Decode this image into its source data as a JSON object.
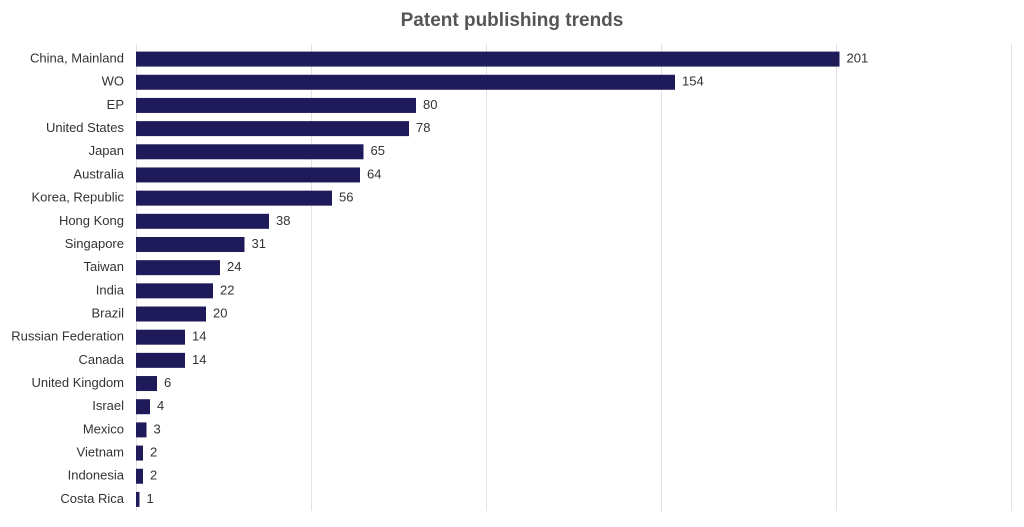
{
  "chart_data": {
    "type": "bar",
    "orientation": "horizontal",
    "title": "Patent publishing trends",
    "categories": [
      "China, Mainland",
      "WO",
      "EP",
      "United States",
      "Japan",
      "Australia",
      "Korea, Republic",
      "Hong Kong",
      "Singapore",
      "Taiwan",
      "India",
      "Brazil",
      "Russian Federation",
      "Canada",
      "United Kingdom",
      "Israel",
      "Mexico",
      "Vietnam",
      "Indonesia",
      "Costa Rica"
    ],
    "values": [
      201,
      154,
      80,
      78,
      65,
      64,
      56,
      38,
      31,
      24,
      22,
      20,
      14,
      14,
      6,
      4,
      3,
      2,
      2,
      1
    ],
    "color": "#1f1a5a",
    "xlim": [
      0,
      250
    ],
    "xticks": [
      0,
      50,
      100,
      150,
      200,
      250
    ],
    "grid": true
  }
}
